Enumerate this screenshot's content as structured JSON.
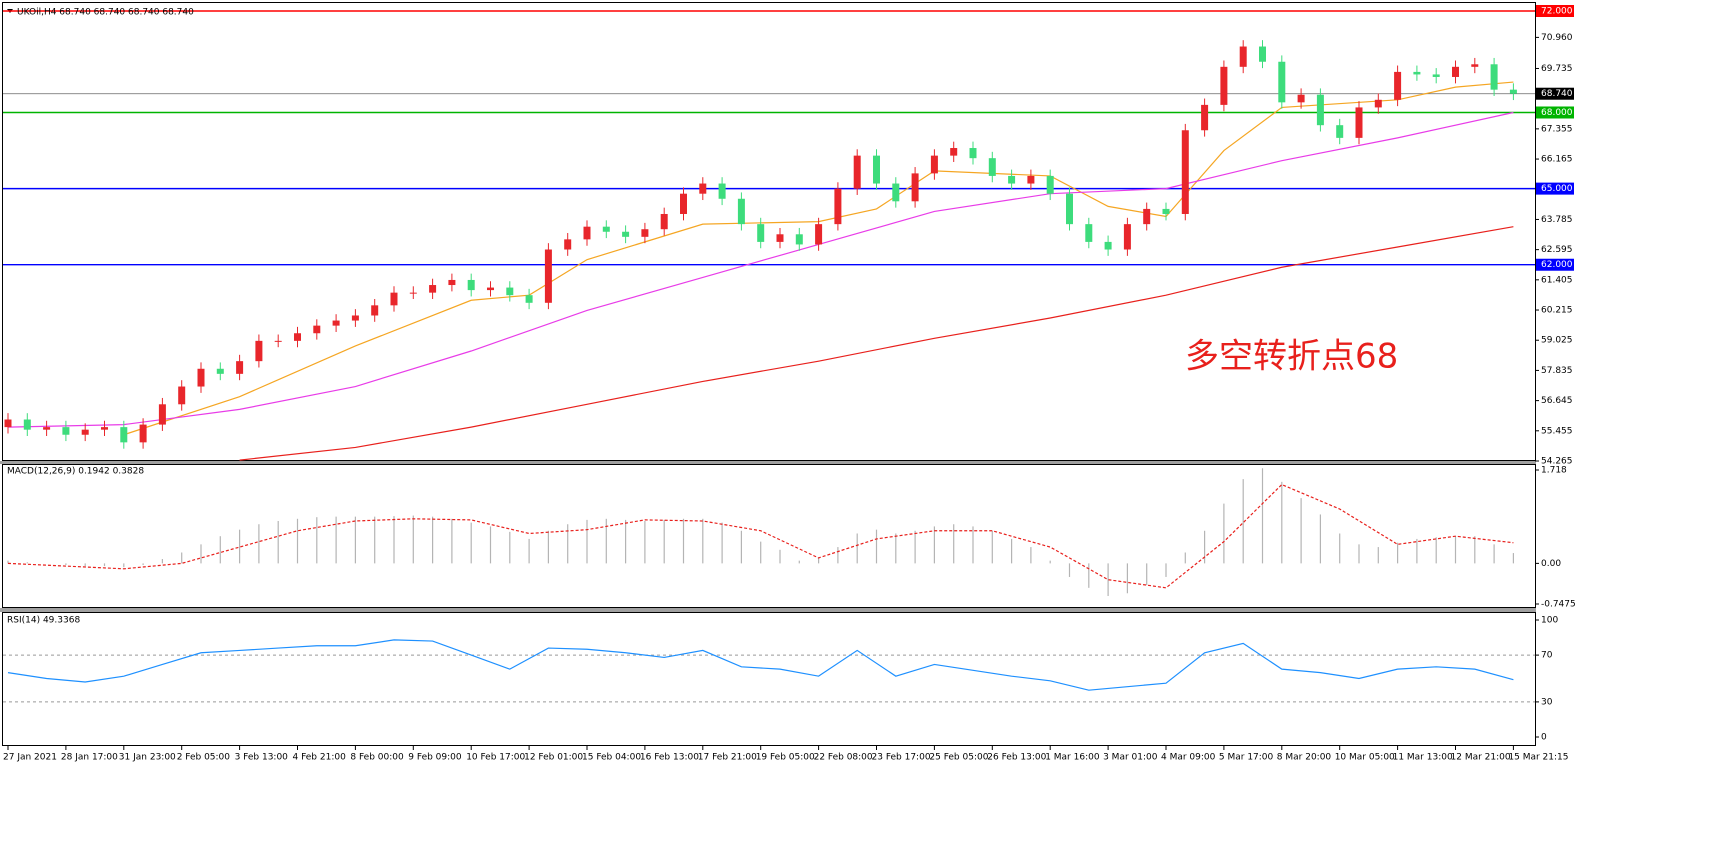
{
  "chart_data": [
    {
      "type": "candlestick",
      "title": "UKOil,H4  68.740 68.740 68.740 68.740",
      "annotation": "多空转折点68",
      "categories": [
        "27 Jan 2021",
        null,
        null,
        "28 Jan 17:00",
        null,
        null,
        "31 Jan 23:00",
        null,
        null,
        "2 Feb 05:00",
        null,
        null,
        "3 Feb 13:00",
        null,
        null,
        "4 Feb 21:00",
        null,
        null,
        "8 Feb 00:00",
        null,
        null,
        "9 Feb 09:00",
        null,
        null,
        "10 Feb 17:00",
        null,
        null,
        "12 Feb 01:00",
        null,
        null,
        "15 Feb 04:00",
        null,
        null,
        "16 Feb 13:00",
        null,
        null,
        "17 Feb 21:00",
        null,
        null,
        "19 Feb 05:00",
        null,
        null,
        "22 Feb 08:00",
        null,
        null,
        "23 Feb 17:00",
        null,
        null,
        "25 Feb 05:00",
        null,
        null,
        "26 Feb 13:00",
        null,
        null,
        "1 Mar 16:00",
        null,
        null,
        "3 Mar 01:00",
        null,
        null,
        "4 Mar 09:00",
        null,
        null,
        "5 Mar 17:00",
        null,
        null,
        "8 Mar 20:00",
        null,
        null,
        "10 Mar 05:00",
        null,
        null,
        "11 Mar 13:00",
        null,
        null,
        "12 Mar 21:00",
        null,
        null,
        "15 Mar 21:15"
      ],
      "open": [
        55.6,
        55.9,
        55.5,
        55.6,
        55.3,
        55.5,
        55.6,
        55.0,
        55.7,
        56.5,
        57.2,
        57.9,
        57.7,
        58.2,
        59.0,
        59.0,
        59.3,
        59.6,
        59.8,
        60.0,
        60.4,
        60.9,
        60.9,
        61.2,
        61.4,
        61.0,
        61.1,
        60.8,
        60.5,
        62.6,
        63.0,
        63.5,
        63.3,
        63.1,
        63.4,
        64.0,
        64.8,
        65.2,
        64.6,
        63.6,
        62.9,
        63.2,
        62.8,
        63.6,
        65.0,
        66.3,
        65.2,
        64.5,
        65.6,
        66.3,
        66.6,
        66.2,
        65.5,
        65.2,
        65.5,
        64.8,
        63.6,
        62.9,
        62.6,
        63.6,
        64.2,
        64.0,
        67.3,
        68.3,
        69.8,
        70.6,
        70.0,
        68.4,
        68.7,
        67.5,
        67.0,
        68.2,
        68.5,
        69.6,
        69.5,
        69.4,
        69.8,
        69.9,
        68.9
      ],
      "high": [
        56.15,
        56.15,
        55.85,
        55.85,
        55.75,
        55.85,
        55.85,
        55.95,
        56.75,
        57.45,
        58.15,
        58.15,
        58.45,
        59.25,
        59.25,
        59.55,
        59.85,
        60.05,
        60.25,
        60.65,
        61.15,
        61.15,
        61.45,
        61.65,
        61.65,
        61.35,
        61.35,
        61.05,
        62.85,
        63.25,
        63.75,
        63.75,
        63.55,
        63.65,
        64.25,
        65.05,
        65.45,
        65.45,
        64.85,
        63.85,
        63.45,
        63.45,
        63.85,
        65.25,
        66.55,
        66.55,
        65.45,
        65.85,
        66.55,
        66.85,
        66.85,
        66.45,
        65.75,
        65.75,
        65.75,
        65.05,
        63.85,
        63.15,
        63.85,
        64.45,
        64.45,
        67.55,
        68.55,
        70.05,
        70.85,
        70.85,
        70.25,
        68.95,
        68.95,
        67.75,
        68.45,
        68.75,
        69.85,
        69.85,
        69.75,
        70.05,
        70.15,
        70.15,
        69.15
      ],
      "low": [
        55.35,
        55.25,
        55.25,
        55.05,
        55.05,
        55.25,
        54.75,
        54.75,
        55.45,
        56.25,
        56.95,
        57.45,
        57.45,
        57.95,
        58.75,
        58.75,
        59.05,
        59.35,
        59.55,
        59.75,
        60.15,
        60.65,
        60.65,
        60.95,
        60.75,
        60.75,
        60.55,
        60.25,
        60.25,
        62.35,
        62.75,
        63.05,
        62.85,
        62.85,
        63.15,
        63.75,
        64.55,
        64.35,
        63.35,
        62.65,
        62.65,
        62.55,
        62.55,
        63.35,
        64.75,
        64.95,
        64.25,
        64.25,
        65.35,
        66.05,
        65.95,
        65.25,
        64.95,
        64.95,
        64.55,
        63.35,
        62.65,
        62.35,
        62.35,
        63.35,
        63.75,
        63.75,
        67.05,
        68.05,
        69.55,
        69.75,
        68.15,
        68.15,
        67.25,
        66.75,
        66.75,
        67.95,
        68.25,
        69.25,
        69.15,
        69.15,
        69.55,
        68.65,
        68.49
      ],
      "close": [
        55.9,
        55.5,
        55.6,
        55.3,
        55.5,
        55.6,
        55.0,
        55.7,
        56.5,
        57.2,
        57.9,
        57.7,
        58.2,
        59.0,
        59.0,
        59.3,
        59.6,
        59.8,
        60.0,
        60.4,
        60.9,
        60.9,
        61.2,
        61.4,
        61.0,
        61.1,
        60.8,
        60.5,
        62.6,
        63.0,
        63.5,
        63.3,
        63.1,
        63.4,
        64.0,
        64.8,
        65.2,
        64.6,
        63.6,
        62.9,
        63.2,
        62.8,
        63.6,
        65.0,
        66.3,
        65.2,
        64.5,
        65.6,
        66.3,
        66.6,
        66.2,
        65.5,
        65.2,
        65.5,
        64.8,
        63.6,
        62.9,
        62.6,
        63.6,
        64.2,
        64.0,
        67.3,
        68.3,
        69.8,
        70.6,
        70.0,
        68.4,
        68.7,
        67.5,
        67.0,
        68.2,
        68.5,
        69.6,
        69.5,
        69.4,
        69.8,
        69.9,
        68.9,
        68.74
      ],
      "up_color": "#e8262b",
      "down_color": "#3ddc7c",
      "series": [
        {
          "color": "#f5a623",
          "x": [
            6,
            12,
            18,
            24,
            27,
            30,
            36,
            42,
            45,
            48,
            54,
            57,
            60,
            63,
            66,
            72,
            75,
            78
          ],
          "values": [
            55.3,
            56.8,
            58.8,
            60.6,
            60.8,
            62.2,
            63.6,
            63.7,
            64.2,
            65.7,
            65.5,
            64.3,
            63.9,
            66.5,
            68.2,
            68.5,
            69.0,
            69.2
          ]
        },
        {
          "color": "#e83ce8",
          "x": [
            0,
            6,
            12,
            18,
            24,
            30,
            36,
            42,
            48,
            54,
            60,
            66,
            72,
            78
          ],
          "values": [
            55.6,
            55.7,
            56.3,
            57.2,
            58.6,
            60.2,
            61.5,
            62.8,
            64.1,
            64.8,
            65.0,
            66.1,
            67.0,
            68.0
          ]
        },
        {
          "color": "#e8201c",
          "x": [
            12,
            18,
            24,
            30,
            36,
            42,
            48,
            54,
            60,
            66,
            72,
            78
          ],
          "values": [
            54.3,
            54.8,
            55.6,
            56.5,
            57.4,
            58.2,
            59.1,
            59.9,
            60.8,
            61.9,
            62.7,
            63.5
          ]
        }
      ],
      "levels": [
        {
          "value": 72,
          "label": "72.000",
          "color": "#ff0000"
        },
        {
          "value": 68.74,
          "label": "68.740",
          "color": "#000000"
        },
        {
          "value": 68,
          "label": "68.000",
          "color": "#00b400"
        },
        {
          "value": 65,
          "label": "65.000",
          "color": "#0000ff"
        },
        {
          "value": 62,
          "label": "62.000",
          "color": "#0000ff"
        }
      ],
      "ylim": [
        54.265,
        72
      ],
      "yticks": [
        {
          "value": 70.96,
          "label": "70.960"
        },
        69.735,
        {
          "value": 67.355,
          "label": "67.355"
        },
        66.165,
        63.785,
        62.595,
        61.405,
        60.215,
        59.025,
        57.835,
        56.645,
        55.455,
        54.265
      ]
    },
    {
      "type": "macd",
      "title": "MACD(12,26,9) 0.1942 0.3828",
      "values": [
        0.05,
        0.02,
        0,
        -0.03,
        -0.05,
        -0.05,
        -0.07,
        -0.03,
        0.08,
        0.2,
        0.35,
        0.5,
        0.62,
        0.72,
        0.78,
        0.82,
        0.85,
        0.86,
        0.86,
        0.86,
        0.87,
        0.88,
        0.86,
        0.82,
        0.75,
        0.68,
        0.58,
        0.45,
        0.6,
        0.72,
        0.8,
        0.82,
        0.8,
        0.78,
        0.8,
        0.82,
        0.82,
        0.75,
        0.6,
        0.4,
        0.25,
        0.05,
        0.1,
        0.3,
        0.55,
        0.62,
        0.55,
        0.6,
        0.68,
        0.72,
        0.68,
        0.6,
        0.45,
        0.3,
        0.05,
        -0.25,
        -0.45,
        -0.6,
        -0.55,
        -0.4,
        -0.25,
        0.2,
        0.6,
        1.1,
        1.55,
        1.75,
        1.5,
        1.2,
        0.9,
        0.55,
        0.35,
        0.3,
        0.38,
        0.45,
        0.48,
        0.5,
        0.5,
        0.35,
        0.19
      ],
      "color": "#b4b4b4",
      "signal": {
        "color": "#e8201c",
        "x": [
          0,
          3,
          6,
          9,
          12,
          15,
          18,
          21,
          24,
          27,
          30,
          33,
          36,
          39,
          42,
          45,
          48,
          51,
          54,
          57,
          60,
          63,
          66,
          69,
          72,
          75,
          78
        ],
        "values": [
          0,
          -0.05,
          -0.1,
          0,
          0.3,
          0.6,
          0.78,
          0.82,
          0.8,
          0.55,
          0.62,
          0.8,
          0.78,
          0.6,
          0.1,
          0.45,
          0.6,
          0.6,
          0.3,
          -0.3,
          -0.45,
          0.4,
          1.45,
          1,
          0.35,
          0.5,
          0.38
        ]
      },
      "ylim": [
        -0.7475,
        1.718
      ],
      "yticks": [
        1.718,
        {
          "value": 0,
          "label": "0.00"
        },
        -0.7475
      ]
    },
    {
      "type": "line",
      "title": "RSI(14) 49.3368",
      "x": [
        0,
        2,
        4,
        6,
        8,
        10,
        12,
        14,
        16,
        18,
        20,
        22,
        24,
        26,
        28,
        30,
        32,
        34,
        36,
        38,
        40,
        42,
        44,
        46,
        48,
        50,
        52,
        54,
        56,
        58,
        60,
        62,
        64,
        66,
        68,
        70,
        72,
        74,
        76,
        78
      ],
      "values": [
        55,
        50,
        47,
        52,
        62,
        72,
        74,
        76,
        78,
        78,
        83,
        82,
        70,
        58,
        76,
        75,
        72,
        68,
        74,
        60,
        58,
        52,
        74,
        52,
        62,
        57,
        52,
        48,
        40,
        43,
        46,
        72,
        80,
        58,
        55,
        50,
        58,
        60,
        58,
        49
      ],
      "color": "#1e90ff",
      "levels": [
        70,
        30
      ],
      "ylim": [
        0,
        100
      ],
      "yticks": [
        100,
        70,
        30,
        0
      ]
    }
  ]
}
